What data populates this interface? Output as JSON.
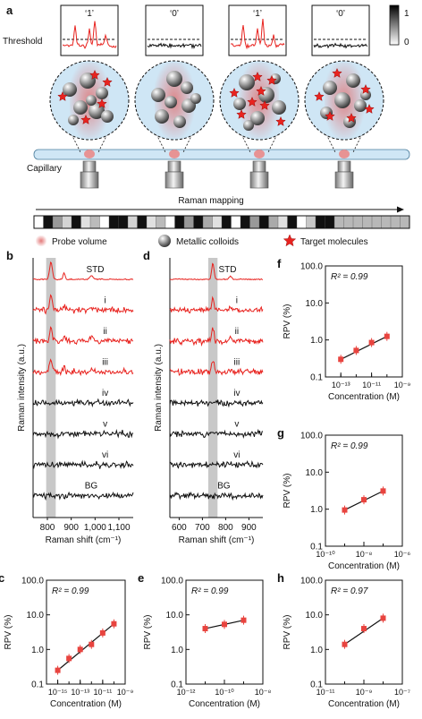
{
  "panel_a": {
    "panel_letter": "a",
    "threshold_label": "Threshold",
    "capillary_label": "Capillary",
    "mapping_label": "Raman mapping",
    "digits": [
      "‘1’",
      "‘0’",
      "‘1’",
      "‘0’"
    ],
    "colorbar_ticks": [
      "1",
      "0"
    ],
    "legend": {
      "probe": "Probe volume",
      "colloids": "Metallic colloids",
      "targets": "Target molecules"
    },
    "barcode": [
      0,
      1,
      0,
      0,
      1,
      0,
      0,
      0,
      1,
      1,
      0,
      1,
      0,
      0,
      0,
      1,
      0,
      1,
      0,
      0,
      1,
      0,
      1,
      0,
      1,
      0,
      0,
      1,
      0,
      0,
      1,
      1,
      0,
      0,
      0,
      0,
      0,
      0,
      0,
      0
    ]
  },
  "colors": {
    "red": "#e8231f",
    "black": "#111111",
    "marker": "#e8443f",
    "band": "#c8c8c8",
    "capillary": "#cfe6f5",
    "probe": "#e98a8a"
  },
  "chart_data": [
    {
      "panel": "b",
      "type": "line",
      "xlabel": "Raman shift (cm⁻¹)",
      "ylabel": "Raman intensity (a.u.)",
      "xlim": [
        740,
        1160
      ],
      "xticks": [
        "800",
        "900",
        "1,000",
        "1,100"
      ],
      "highlight_band": [
        795,
        835
      ],
      "series": [
        {
          "name": "STD",
          "color": "red"
        },
        {
          "name": "i",
          "color": "red"
        },
        {
          "name": "ii",
          "color": "red"
        },
        {
          "name": "iii",
          "color": "red"
        },
        {
          "name": "iv",
          "color": "black"
        },
        {
          "name": "v",
          "color": "black"
        },
        {
          "name": "vi",
          "color": "black"
        },
        {
          "name": "BG",
          "color": "black"
        }
      ]
    },
    {
      "panel": "d",
      "type": "line",
      "xlabel": "Raman shift (cm⁻¹)",
      "ylabel": "Raman intensity (a.u.)",
      "xlim": [
        560,
        960
      ],
      "xticks": [
        "600",
        "700",
        "800",
        "900"
      ],
      "highlight_band": [
        725,
        765
      ],
      "series": [
        {
          "name": "STD",
          "color": "red"
        },
        {
          "name": "i",
          "color": "red"
        },
        {
          "name": "ii",
          "color": "red"
        },
        {
          "name": "iii",
          "color": "red"
        },
        {
          "name": "iv",
          "color": "black"
        },
        {
          "name": "v",
          "color": "black"
        },
        {
          "name": "vi",
          "color": "black"
        },
        {
          "name": "BG",
          "color": "black"
        }
      ]
    },
    {
      "panel": "f",
      "type": "scatter",
      "xlabel": "Concentration (M)",
      "ylabel": "RPV (%)",
      "x_log": true,
      "y_log": true,
      "xlim": [
        -14,
        -9
      ],
      "ylim": [
        -1,
        2
      ],
      "xticks": [
        {
          "e": -13,
          "label": "10⁻¹³"
        },
        {
          "e": -11,
          "label": "10⁻¹¹"
        },
        {
          "e": -9,
          "label": "10⁻⁹"
        }
      ],
      "yticks": [
        "0.1",
        "1.0",
        "10.0",
        "100.0"
      ],
      "r2": "R² = 0.99",
      "points": [
        {
          "x": 1e-13,
          "y": 0.3
        },
        {
          "x": 1e-12,
          "y": 0.52
        },
        {
          "x": 1e-11,
          "y": 0.85
        },
        {
          "x": 1e-10,
          "y": 1.25
        }
      ]
    },
    {
      "panel": "g",
      "type": "scatter",
      "xlabel": "Concentration (M)",
      "ylabel": "RPV (%)",
      "x_log": true,
      "y_log": true,
      "xlim": [
        -10,
        -6
      ],
      "ylim": [
        -1,
        2
      ],
      "xticks": [
        {
          "e": -10,
          "label": "10⁻¹⁰"
        },
        {
          "e": -8,
          "label": "10⁻⁸"
        },
        {
          "e": -6,
          "label": "10⁻⁶"
        }
      ],
      "yticks": [
        "0.1",
        "1.0",
        "10.0",
        "100.0"
      ],
      "r2": "R² = 0.99",
      "points": [
        {
          "x": 1e-09,
          "y": 0.95
        },
        {
          "x": 1e-08,
          "y": 1.8
        },
        {
          "x": 1e-07,
          "y": 3.1
        }
      ]
    },
    {
      "panel": "c",
      "type": "scatter",
      "xlabel": "Concentration (M)",
      "ylabel": "RPV (%)",
      "x_log": true,
      "y_log": true,
      "xlim": [
        -16,
        -9
      ],
      "ylim": [
        -1,
        2
      ],
      "xticks": [
        {
          "e": -15,
          "label": "10⁻¹⁵"
        },
        {
          "e": -13,
          "label": "10⁻¹³"
        },
        {
          "e": -11,
          "label": "10⁻¹¹"
        },
        {
          "e": -9,
          "label": "10⁻⁹"
        }
      ],
      "yticks": [
        "0.1",
        "1.0",
        "10.0",
        "100.0"
      ],
      "r2": "R² = 0.99",
      "points": [
        {
          "x": 1e-15,
          "y": 0.25
        },
        {
          "x": 1e-14,
          "y": 0.55
        },
        {
          "x": 1e-13,
          "y": 1.0
        },
        {
          "x": 1e-12,
          "y": 1.4
        },
        {
          "x": 1e-11,
          "y": 3.0
        },
        {
          "x": 1e-10,
          "y": 5.5
        }
      ]
    },
    {
      "panel": "e",
      "type": "scatter",
      "xlabel": "Concentration (M)",
      "ylabel": "RPV (%)",
      "x_log": true,
      "y_log": true,
      "xlim": [
        -12,
        -8
      ],
      "ylim": [
        -1,
        2
      ],
      "xticks": [
        {
          "e": -12,
          "label": "10⁻¹²"
        },
        {
          "e": -10,
          "label": "10⁻¹⁰"
        },
        {
          "e": -8,
          "label": "10⁻⁸"
        }
      ],
      "yticks": [
        "0.1",
        "1.0",
        "10.0",
        "100.0"
      ],
      "r2": "R² = 0.99",
      "points": [
        {
          "x": 1e-11,
          "y": 4.0
        },
        {
          "x": 1e-10,
          "y": 5.3
        },
        {
          "x": 1e-09,
          "y": 7.0
        }
      ]
    },
    {
      "panel": "h",
      "type": "scatter",
      "xlabel": "Concentration (M)",
      "ylabel": "RPV (%)",
      "x_log": true,
      "y_log": true,
      "xlim": [
        -11,
        -7
      ],
      "ylim": [
        -1,
        2
      ],
      "xticks": [
        {
          "e": -11,
          "label": "10⁻¹¹"
        },
        {
          "e": -9,
          "label": "10⁻⁹"
        },
        {
          "e": -7,
          "label": "10⁻⁷"
        }
      ],
      "yticks": [
        "0.1",
        "1.0",
        "10.0",
        "100.0"
      ],
      "r2": "R² = 0.97",
      "points": [
        {
          "x": 1e-10,
          "y": 1.4
        },
        {
          "x": 1e-09,
          "y": 4.0
        },
        {
          "x": 1e-08,
          "y": 8.0
        }
      ]
    }
  ]
}
